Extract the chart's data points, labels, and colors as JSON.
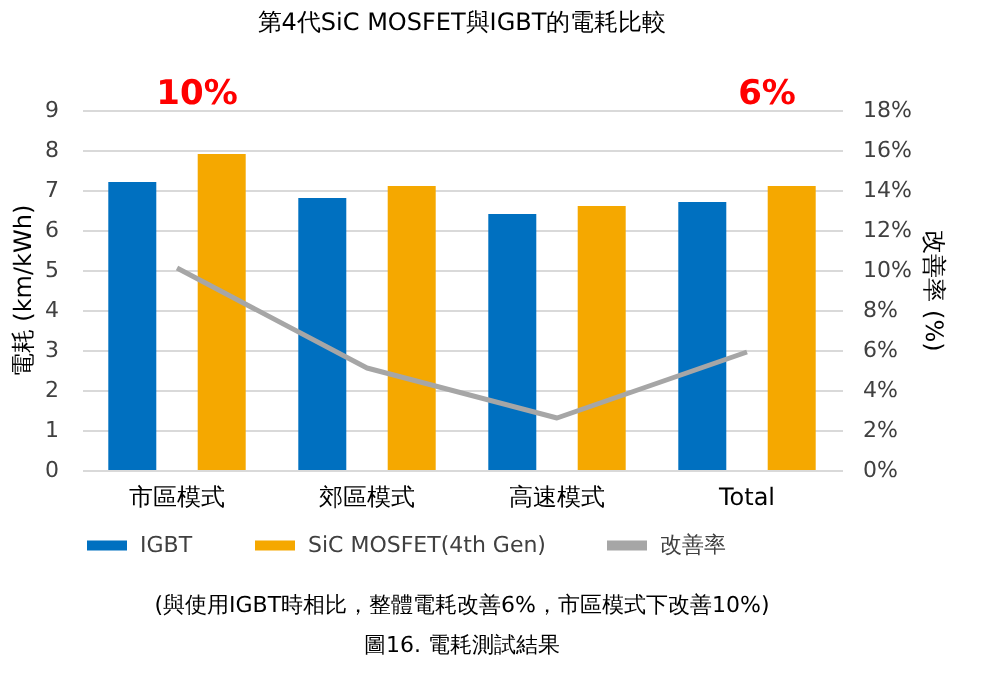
{
  "chart_data": {
    "type": "bar",
    "title": "第4代SiC MOSFET與IGBT的電耗比較",
    "ylabel": "電耗 (km/kWh)",
    "y2label": "改善率 (%)",
    "categories": [
      "市區模式",
      "郊區模式",
      "高速模式",
      "Total"
    ],
    "series": [
      {
        "name": "IGBT",
        "color": "#0070c0",
        "values": [
          7.2,
          6.8,
          6.4,
          6.7
        ]
      },
      {
        "name": "SiC MOSFET(4th Gen)",
        "color": "#f5a800",
        "values": [
          7.9,
          7.1,
          6.6,
          7.1
        ]
      },
      {
        "name": "改善率",
        "type": "line",
        "axis": "y2",
        "color": "#a6a6a6",
        "values": [
          10.1,
          5.1,
          2.6,
          5.9
        ]
      }
    ],
    "ylim": [
      0,
      9
    ],
    "yticks": [
      0,
      1,
      2,
      3,
      4,
      5,
      6,
      7,
      8,
      9
    ],
    "y2lim": [
      0,
      18
    ],
    "y2ticks": [
      {
        "value": 0,
        "label": "0%"
      },
      {
        "value": 2,
        "label": "2%"
      },
      {
        "value": 4,
        "label": "4%"
      },
      {
        "value": 6,
        "label": "6%"
      },
      {
        "value": 8,
        "label": "8%"
      },
      {
        "value": 10,
        "label": "10%"
      },
      {
        "value": 12,
        "label": "12%"
      },
      {
        "value": 14,
        "label": "14%"
      },
      {
        "value": 16,
        "label": "16%"
      },
      {
        "value": 18,
        "label": "18%"
      }
    ],
    "grid": "y",
    "legend": "bottom",
    "marker": "none",
    "annotations": [
      "10%",
      "6%",
      "(與使用IGBT時相比，整體電耗改善6%，市區模式下改善10%)",
      "圖16. 電耗測試結果"
    ]
  }
}
